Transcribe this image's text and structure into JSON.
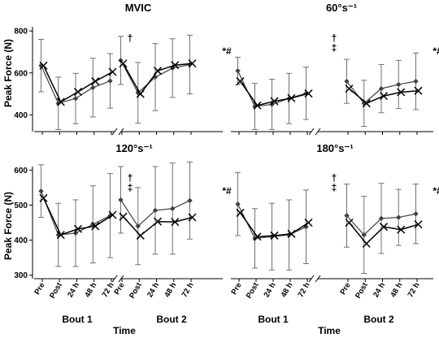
{
  "figure": {
    "y_label": "Peak Force (N)",
    "x_label": "Time",
    "bout_labels": [
      "Bout 1",
      "Bout 2"
    ],
    "time_points": [
      "Pre",
      "Post",
      "24 h",
      "48 h",
      "72 h"
    ],
    "colors": {
      "diamond_series": "#404040",
      "x_series": "#000000",
      "error_bars": "#707070"
    }
  },
  "chart_data": [
    {
      "type": "line",
      "title": "MVIC",
      "ylim": [
        320,
        820
      ],
      "yticks": [
        "400",
        "600",
        "800"
      ],
      "ytick_values": [
        400,
        600,
        800
      ],
      "categories": [
        "Pre",
        "Post",
        "24 h",
        "48 h",
        "72 h"
      ],
      "marker_bout2": "†",
      "marker_right": "*#",
      "bouts": [
        {
          "name": "Bout 1",
          "series": [
            {
              "marker": "diamond",
              "values": [
                635,
                455,
                478,
                530,
                562
              ],
              "err": [
                125,
                125,
                120,
                140,
                130
              ]
            },
            {
              "marker": "x",
              "values": [
                635,
                462,
                510,
                560,
                605
              ]
            }
          ]
        },
        {
          "name": "Bout 2",
          "series": [
            {
              "marker": "diamond",
              "values": [
                660,
                505,
                580,
                623,
                640
              ],
              "err": [
                115,
                145,
                160,
                140,
                140
              ]
            },
            {
              "marker": "x",
              "values": [
                645,
                500,
                610,
                637,
                645
              ]
            }
          ]
        }
      ]
    },
    {
      "type": "line",
      "title": "60°s⁻¹",
      "ylim": [
        320,
        820
      ],
      "yticks": [],
      "ytick_values": [],
      "categories": [
        "Pre",
        "Post",
        "24 h",
        "48 h",
        "72 h"
      ],
      "marker_bout2": "†\n‡",
      "marker_right": "*#",
      "bouts": [
        {
          "name": "Bout 1",
          "series": [
            {
              "marker": "diamond",
              "values": [
                610,
                440,
                450,
                478,
                503
              ],
              "err": [
                65,
                110,
                120,
                120,
                125
              ]
            },
            {
              "marker": "x",
              "values": [
                560,
                445,
                465,
                480,
                502
              ]
            }
          ]
        },
        {
          "name": "Bout 2",
          "series": [
            {
              "marker": "diamond",
              "values": [
                560,
                455,
                525,
                545,
                560
              ],
              "err": [
                105,
                110,
                115,
                115,
                135
              ]
            },
            {
              "marker": "x",
              "values": [
                525,
                455,
                490,
                508,
                515
              ]
            }
          ]
        }
      ]
    },
    {
      "type": "line",
      "title": "120°s⁻¹",
      "ylim": [
        290,
        610
      ],
      "yticks": [
        "300",
        "400",
        "500",
        "600"
      ],
      "ytick_values": [
        300,
        400,
        500,
        600
      ],
      "categories": [
        "Pre",
        "Post",
        "24 h",
        "48 h",
        "72 h"
      ],
      "marker_bout2": "†\n‡",
      "marker_right": "*#",
      "bouts": [
        {
          "name": "Bout 1",
          "series": [
            {
              "marker": "diamond",
              "values": [
                540,
                415,
                420,
                445,
                470
              ],
              "err": [
                75,
                90,
                95,
                110,
                120
              ]
            },
            {
              "marker": "x",
              "values": [
                520,
                415,
                432,
                440,
                472
              ]
            }
          ]
        },
        {
          "name": "Bout 2",
          "series": [
            {
              "marker": "diamond",
              "values": [
                515,
                440,
                485,
                490,
                513
              ],
              "err": [
                95,
                110,
                125,
                130,
                110
              ]
            },
            {
              "marker": "x",
              "values": [
                467,
                413,
                453,
                452,
                465
              ]
            }
          ]
        }
      ]
    },
    {
      "type": "line",
      "title": "180°s⁻¹",
      "ylim": [
        290,
        610
      ],
      "yticks": [],
      "ytick_values": [],
      "categories": [
        "Pre",
        "Post",
        "24 h",
        "48 h",
        "72 h"
      ],
      "marker_bout2": "†\n‡",
      "marker_right": "*#",
      "bouts": [
        {
          "name": "Bout 1",
          "series": [
            {
              "marker": "diamond",
              "values": [
                503,
                405,
                410,
                415,
                438
              ],
              "err": [
                90,
                85,
                95,
                100,
                105
              ]
            },
            {
              "marker": "x",
              "values": [
                478,
                410,
                413,
                418,
                450
              ]
            }
          ]
        },
        {
          "name": "Bout 2",
          "series": [
            {
              "marker": "diamond",
              "values": [
                470,
                415,
                462,
                465,
                475
              ],
              "err": [
                90,
                110,
                100,
                80,
                85
              ]
            },
            {
              "marker": "x",
              "values": [
                450,
                390,
                438,
                430,
                445
              ]
            }
          ]
        }
      ]
    }
  ]
}
